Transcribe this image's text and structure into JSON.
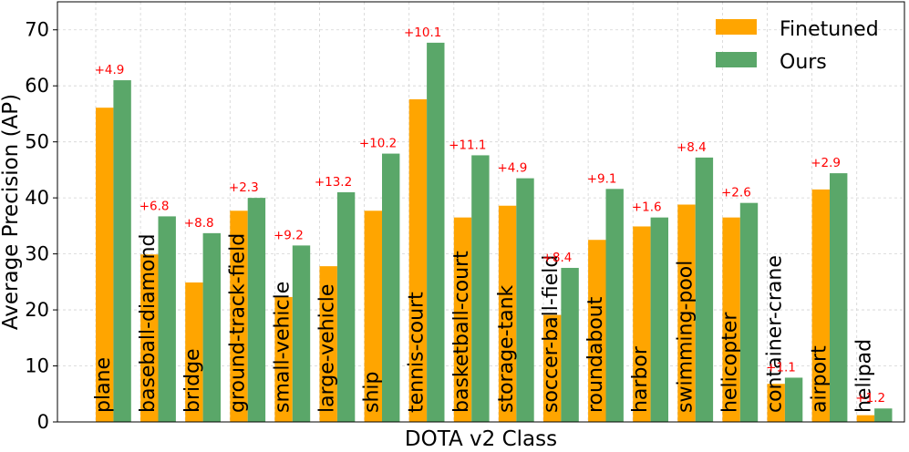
{
  "chart_data": {
    "type": "bar",
    "title": "",
    "xlabel": "DOTA v2 Class",
    "ylabel": "Average Precision (AP)",
    "ylim": [
      0,
      75
    ],
    "yticks": [
      0,
      10,
      20,
      30,
      40,
      50,
      60,
      70
    ],
    "grid": true,
    "legend_position": "top-right",
    "categories": [
      "plane",
      "baseball-diamond",
      "bridge",
      "ground-track-field",
      "small-vehicle",
      "large-vehicle",
      "ship",
      "tennis-court",
      "basketball-court",
      "storage-tank",
      "soccer-ball-field",
      "roundabout",
      "harbor",
      "swimming-pool",
      "helicopter",
      "container-crane",
      "airport",
      "helipad"
    ],
    "series": [
      {
        "name": "Finetuned",
        "color": "#FFA500",
        "values": [
          56.1,
          29.9,
          24.9,
          37.7,
          22.3,
          27.8,
          37.7,
          57.6,
          36.5,
          38.6,
          19.1,
          32.5,
          34.9,
          38.8,
          36.5,
          6.8,
          41.5,
          1.2
        ]
      },
      {
        "name": "Ours",
        "color": "#5AA769",
        "values": [
          61.0,
          36.7,
          33.7,
          40.0,
          31.5,
          41.0,
          47.9,
          67.7,
          47.6,
          43.5,
          27.5,
          41.6,
          36.5,
          47.2,
          39.1,
          7.9,
          44.4,
          2.4
        ]
      }
    ],
    "annotations": [
      "+4.9",
      "+6.8",
      "+8.8",
      "+2.3",
      "+9.2",
      "+13.2",
      "+10.2",
      "+10.1",
      "+11.1",
      "+4.9",
      "+8.4",
      "+9.1",
      "+1.6",
      "+8.4",
      "+2.6",
      "+1.1",
      "+2.9",
      "+1.2"
    ],
    "annotation_color": "#FF0000"
  }
}
